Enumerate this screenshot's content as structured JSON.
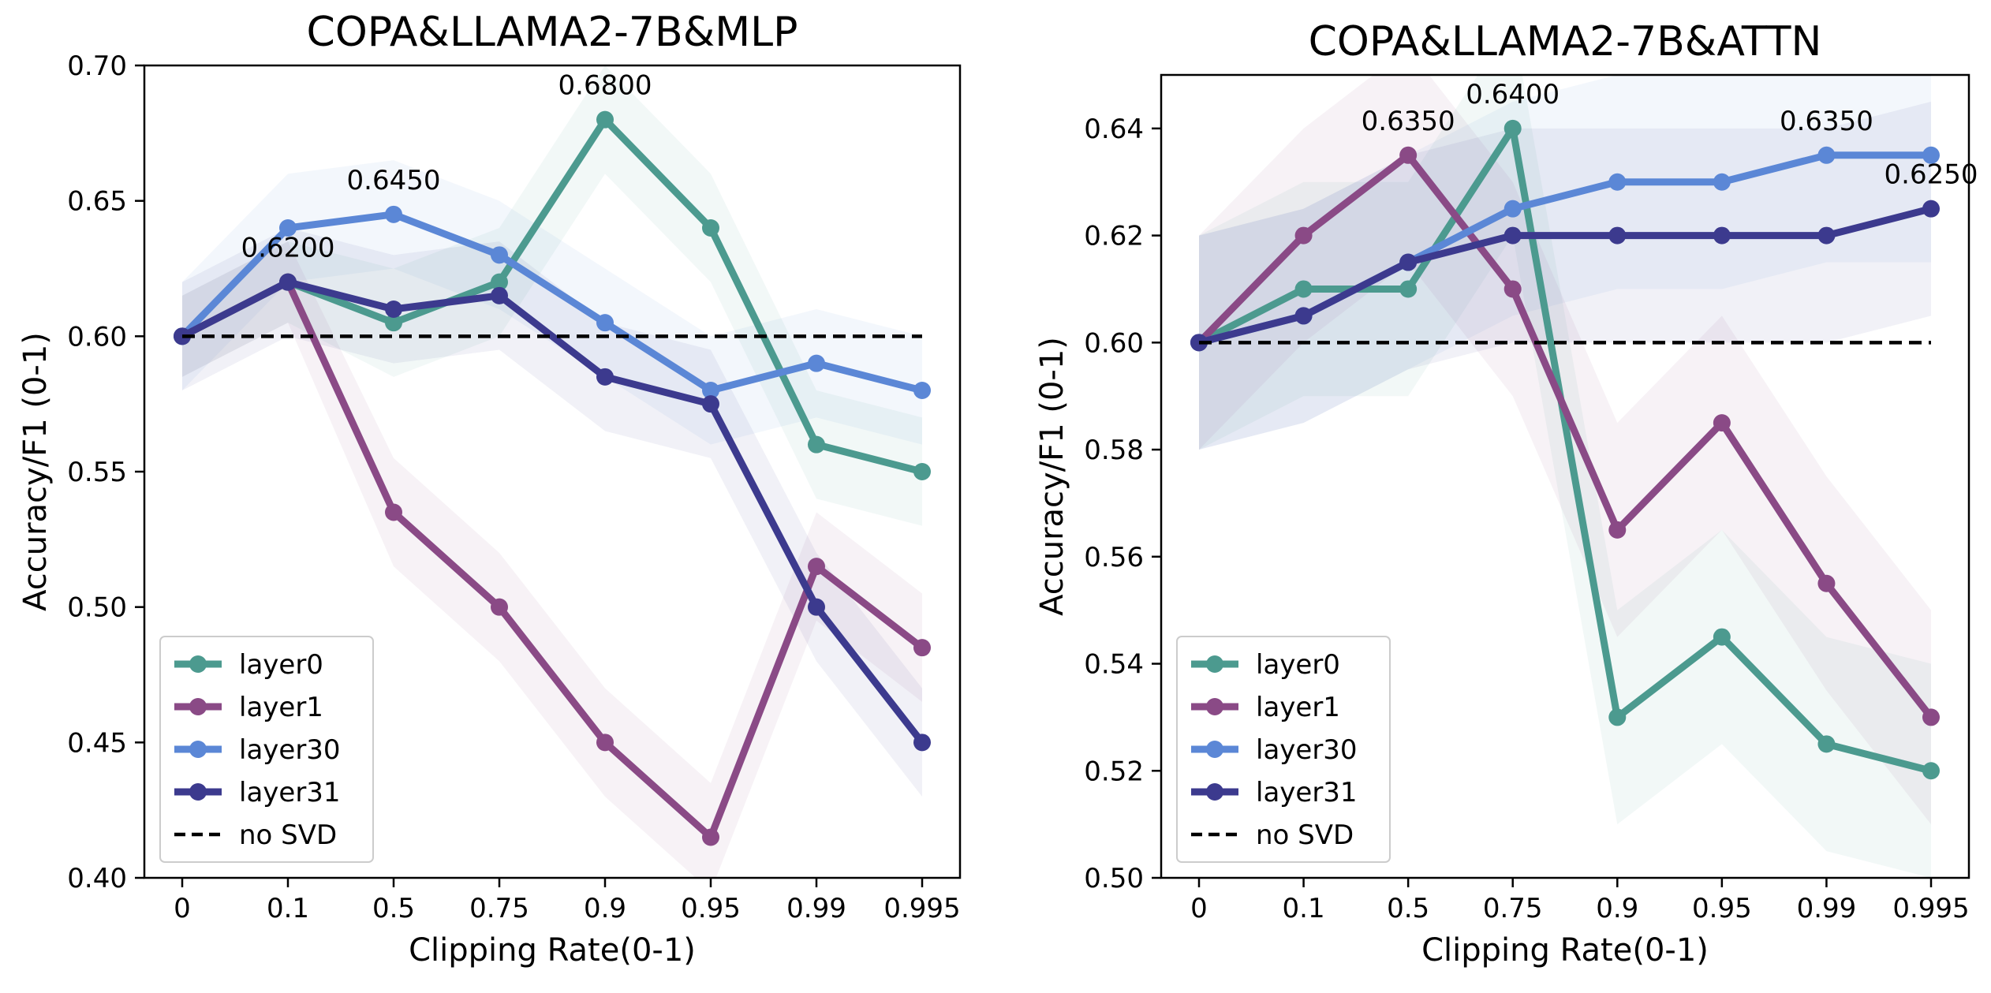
{
  "chart_data": [
    {
      "type": "line",
      "title": "COPA&LLAMA2-7B&MLP",
      "xlabel": "Clipping Rate(0-1)",
      "ylabel": "Accuracy/F1 (0-1)",
      "categories": [
        "0",
        "0.1",
        "0.5",
        "0.75",
        "0.9",
        "0.95",
        "0.99",
        "0.995"
      ],
      "ylim": [
        0.4,
        0.7
      ],
      "yticks": [
        "0.40",
        "0.45",
        "0.50",
        "0.55",
        "0.60",
        "0.65",
        "0.70"
      ],
      "grid": false,
      "legend_position": "lower-left",
      "series": [
        {
          "name": "layer0",
          "color": "#4c9a8f",
          "values": [
            0.6,
            0.62,
            0.605,
            0.62,
            0.68,
            0.64,
            0.56,
            0.55
          ],
          "band_low": [
            0.585,
            0.605,
            0.585,
            0.6,
            0.66,
            0.62,
            0.54,
            0.53
          ],
          "band_high": [
            0.615,
            0.635,
            0.625,
            0.64,
            0.7,
            0.66,
            0.58,
            0.57
          ]
        },
        {
          "name": "layer1",
          "color": "#8a4a86",
          "values": [
            0.6,
            0.62,
            0.535,
            0.5,
            0.45,
            0.415,
            0.515,
            0.485
          ],
          "band_low": [
            0.585,
            0.605,
            0.515,
            0.48,
            0.43,
            0.395,
            0.495,
            0.465
          ],
          "band_high": [
            0.615,
            0.635,
            0.555,
            0.52,
            0.47,
            0.435,
            0.535,
            0.505
          ]
        },
        {
          "name": "layer30",
          "color": "#5b87d6",
          "values": [
            0.6,
            0.64,
            0.645,
            0.63,
            0.605,
            0.58,
            0.59,
            0.58
          ],
          "band_low": [
            0.58,
            0.62,
            0.625,
            0.61,
            0.585,
            0.56,
            0.57,
            0.56
          ],
          "band_high": [
            0.62,
            0.66,
            0.665,
            0.65,
            0.625,
            0.6,
            0.61,
            0.6
          ]
        },
        {
          "name": "layer31",
          "color": "#3c3a8e",
          "values": [
            0.6,
            0.62,
            0.61,
            0.615,
            0.585,
            0.575,
            0.5,
            0.45
          ],
          "band_low": [
            0.58,
            0.6,
            0.59,
            0.595,
            0.565,
            0.555,
            0.48,
            0.43
          ],
          "band_high": [
            0.62,
            0.64,
            0.63,
            0.635,
            0.605,
            0.595,
            0.52,
            0.47
          ]
        },
        {
          "name": "no SVD",
          "color": "#000000",
          "dashed": true,
          "values": [
            0.6,
            0.6,
            0.6,
            0.6,
            0.6,
            0.6,
            0.6,
            0.6
          ]
        }
      ],
      "annotations": [
        {
          "text": "0.6800",
          "x": "0.9",
          "y": 0.68
        },
        {
          "text": "0.6450",
          "x": "0.5",
          "y": 0.645
        },
        {
          "text": "0.6200",
          "x": "0.1",
          "y": 0.62
        }
      ]
    },
    {
      "type": "line",
      "title": "COPA&LLAMA2-7B&ATTN",
      "xlabel": "Clipping Rate(0-1)",
      "ylabel": "Accuracy/F1 (0-1)",
      "categories": [
        "0",
        "0.1",
        "0.5",
        "0.75",
        "0.9",
        "0.95",
        "0.99",
        "0.995"
      ],
      "ylim": [
        0.5,
        0.65
      ],
      "yticks": [
        "0.50",
        "0.52",
        "0.54",
        "0.56",
        "0.58",
        "0.60",
        "0.62",
        "0.64"
      ],
      "grid": false,
      "legend_position": "lower-left",
      "series": [
        {
          "name": "layer0",
          "color": "#4c9a8f",
          "values": [
            0.6,
            0.61,
            0.61,
            0.64,
            0.53,
            0.545,
            0.525,
            0.52
          ],
          "band_low": [
            0.58,
            0.59,
            0.59,
            0.62,
            0.51,
            0.525,
            0.505,
            0.5
          ],
          "band_high": [
            0.62,
            0.63,
            0.63,
            0.66,
            0.55,
            0.565,
            0.545,
            0.54
          ]
        },
        {
          "name": "layer1",
          "color": "#8a4a86",
          "values": [
            0.6,
            0.62,
            0.635,
            0.61,
            0.565,
            0.585,
            0.555,
            0.53
          ],
          "band_low": [
            0.58,
            0.6,
            0.615,
            0.59,
            0.545,
            0.565,
            0.535,
            0.51
          ],
          "band_high": [
            0.62,
            0.64,
            0.655,
            0.63,
            0.585,
            0.605,
            0.575,
            0.55
          ]
        },
        {
          "name": "layer30",
          "color": "#5b87d6",
          "values": [
            0.6,
            0.605,
            0.615,
            0.625,
            0.63,
            0.63,
            0.635,
            0.635
          ],
          "band_low": [
            0.58,
            0.585,
            0.595,
            0.605,
            0.61,
            0.61,
            0.615,
            0.615
          ],
          "band_high": [
            0.62,
            0.625,
            0.635,
            0.645,
            0.65,
            0.65,
            0.655,
            0.655
          ]
        },
        {
          "name": "layer31",
          "color": "#3c3a8e",
          "values": [
            0.6,
            0.605,
            0.615,
            0.62,
            0.62,
            0.62,
            0.62,
            0.625
          ],
          "band_low": [
            0.58,
            0.585,
            0.595,
            0.6,
            0.6,
            0.6,
            0.6,
            0.605
          ],
          "band_high": [
            0.62,
            0.625,
            0.635,
            0.64,
            0.64,
            0.64,
            0.64,
            0.645
          ]
        },
        {
          "name": "no SVD",
          "color": "#000000",
          "dashed": true,
          "values": [
            0.6,
            0.6,
            0.6,
            0.6,
            0.6,
            0.6,
            0.6,
            0.6
          ]
        }
      ],
      "annotations": [
        {
          "text": "0.6350",
          "x": "0.5",
          "y": 0.635
        },
        {
          "text": "0.6400",
          "x": "0.75",
          "y": 0.64
        },
        {
          "text": "0.6350",
          "x": "0.99",
          "y": 0.635
        },
        {
          "text": "0.6250",
          "x": "0.995",
          "y": 0.625
        }
      ]
    }
  ]
}
